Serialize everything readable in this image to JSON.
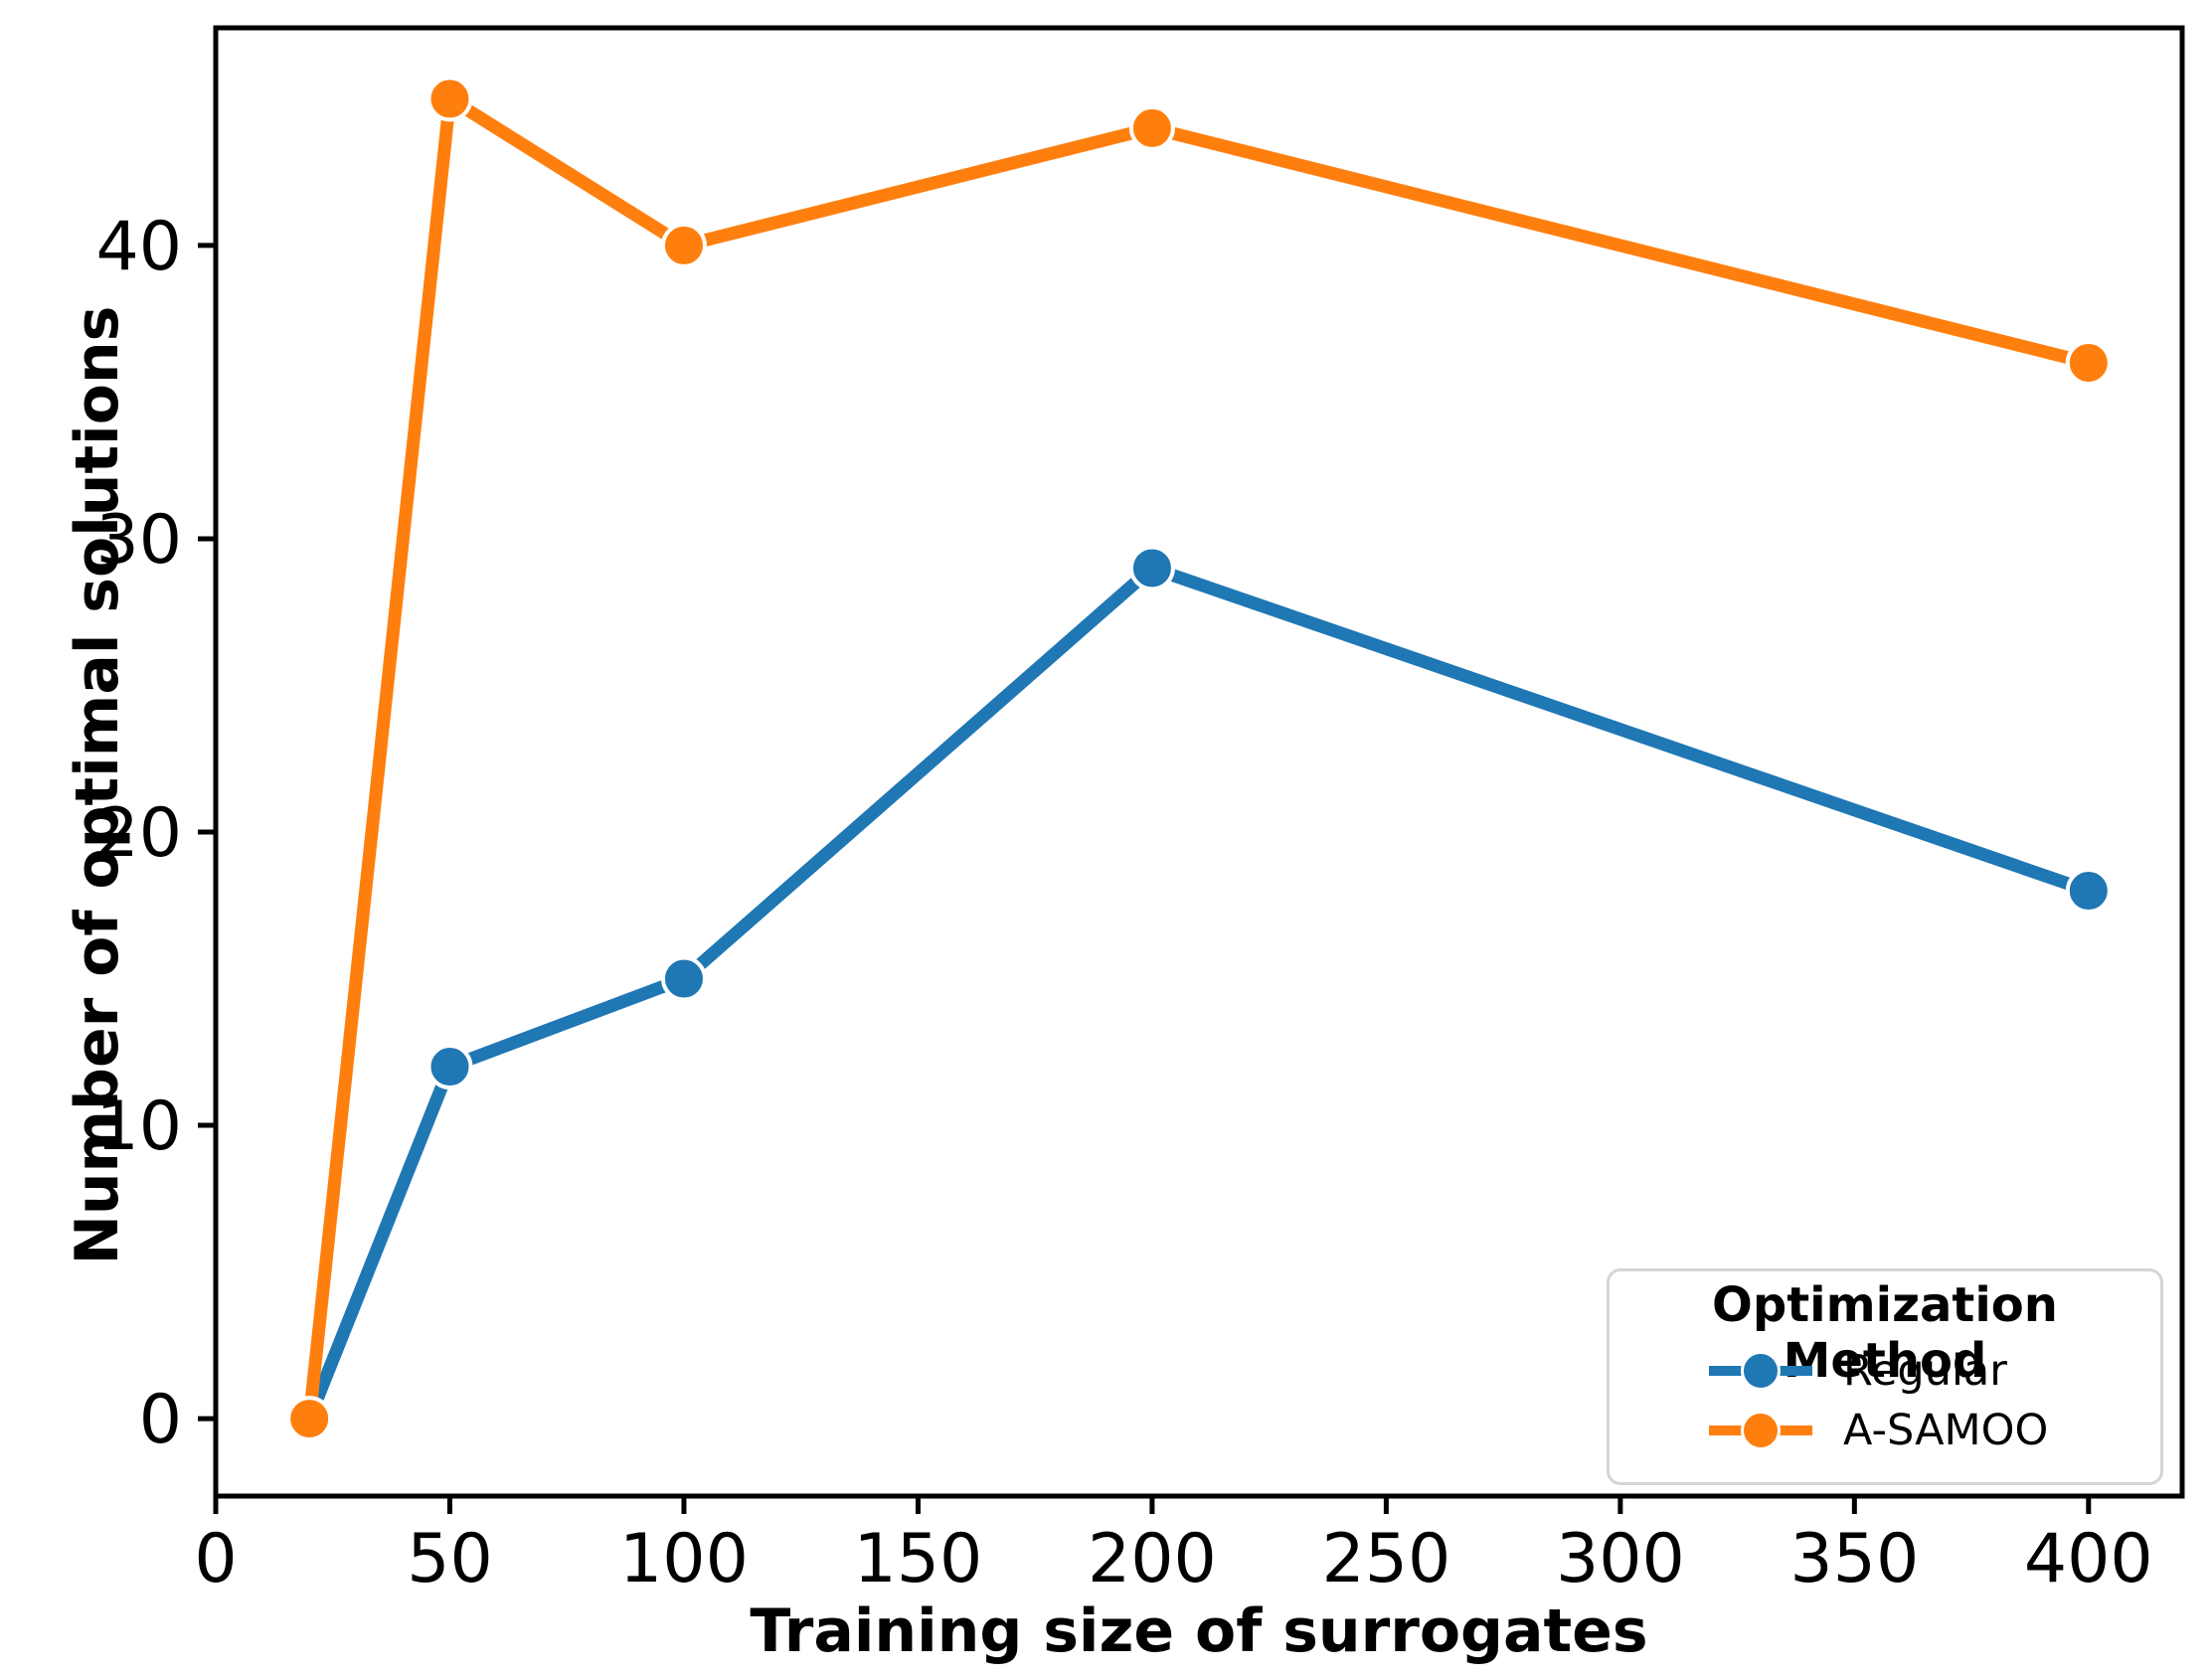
{
  "chart_data": {
    "type": "line",
    "title": "",
    "xlabel": "Training size of surrogates",
    "ylabel": "Number of optimal solutions",
    "x": [
      20,
      50,
      100,
      200,
      400
    ],
    "series": [
      {
        "name": "Regular",
        "color": "#1f77b4",
        "values": [
          0,
          12,
          15,
          29,
          18
        ]
      },
      {
        "name": "A-SAMOO",
        "color": "#ff7f0e",
        "values": [
          0,
          45,
          40,
          44,
          36
        ]
      }
    ],
    "legend_title": "Optimization Method",
    "legend_position": "lower right",
    "xticks": [
      0,
      50,
      100,
      150,
      200,
      250,
      300,
      350,
      400
    ],
    "yticks": [
      0,
      10,
      20,
      30,
      40
    ],
    "xlim": [
      0,
      420
    ],
    "ylim": [
      -2.64,
      47.42
    ],
    "grid": false,
    "marker": "circle",
    "axis_color": "#000000",
    "background_color": "#ffffff",
    "legend_border_color": "#d5d5d5"
  }
}
